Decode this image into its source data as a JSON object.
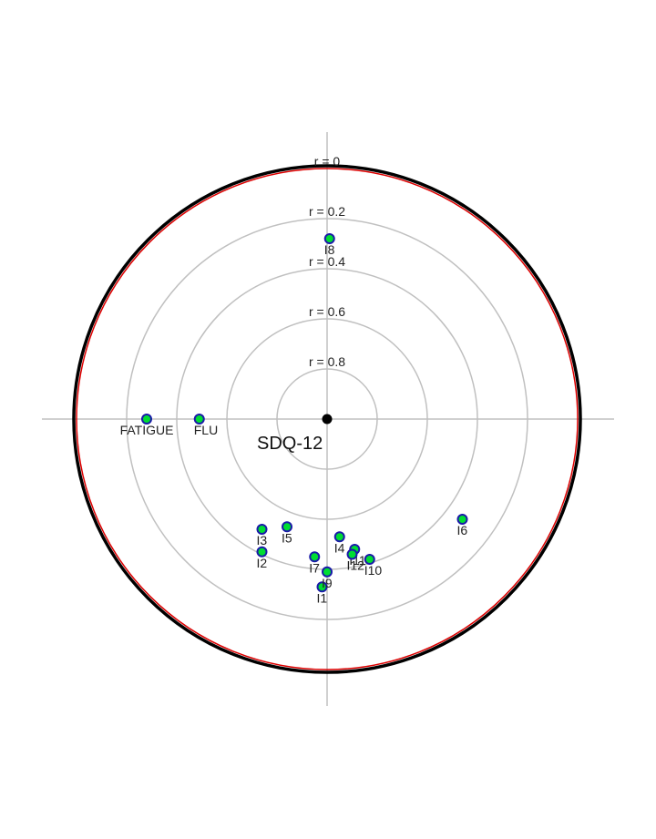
{
  "chart_data": {
    "type": "scatter",
    "coordinate_system": "polar (radius = 1 - r)",
    "title": "SDQ-12",
    "ring_labels": [
      "r = 0",
      "r = 0.2",
      "r = 0.4",
      "r = 0.6",
      "r = 0.8"
    ],
    "ring_values": [
      0,
      0.2,
      0.4,
      0.6,
      0.8
    ],
    "points": [
      {
        "label": "FATIGUE",
        "x": -0.72,
        "y": 0.0
      },
      {
        "label": "FLU",
        "x": -0.51,
        "y": 0.0
      },
      {
        "label": "I1",
        "x": -0.02,
        "y": -0.67
      },
      {
        "label": "I2",
        "x": -0.26,
        "y": -0.53
      },
      {
        "label": "I3",
        "x": -0.26,
        "y": -0.44
      },
      {
        "label": "I4",
        "x": 0.05,
        "y": -0.47
      },
      {
        "label": "I5",
        "x": -0.16,
        "y": -0.43
      },
      {
        "label": "I6",
        "x": 0.54,
        "y": -0.4
      },
      {
        "label": "I7",
        "x": -0.05,
        "y": -0.55
      },
      {
        "label": "I8",
        "x": 0.01,
        "y": 0.72
      },
      {
        "label": "I9",
        "x": 0.0,
        "y": -0.61
      },
      {
        "label": "I10",
        "x": 0.17,
        "y": -0.56
      },
      {
        "label": "I11",
        "x": 0.11,
        "y": -0.52
      },
      {
        "label": "I12",
        "x": 0.1,
        "y": -0.54
      }
    ],
    "colors": {
      "marker_fill": "#00dd33",
      "marker_stroke": "#1a1aa8",
      "grid": "#c0c0c0",
      "outer_circle": "#000000",
      "boundary_circle": "#dd0000",
      "center": "#000000"
    },
    "grid": true
  }
}
